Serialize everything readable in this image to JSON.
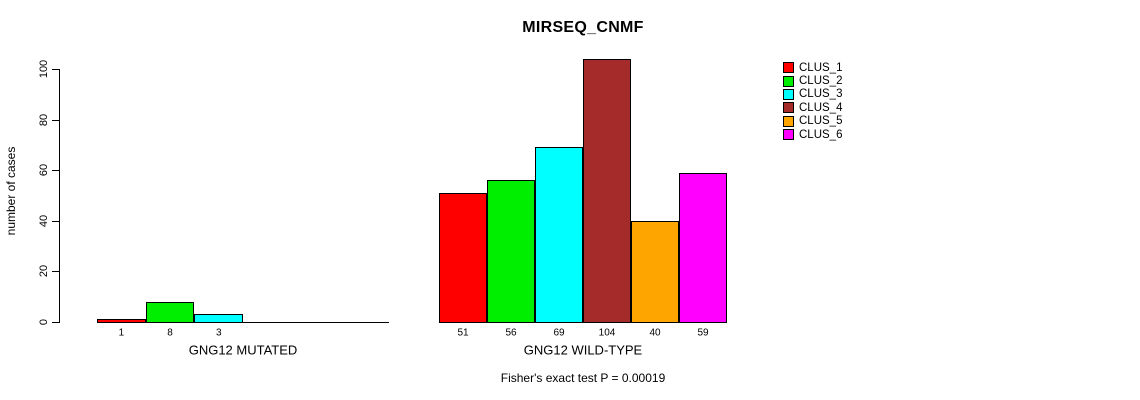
{
  "chart_data": {
    "type": "bar",
    "title": "MIRSEQ_CNMF",
    "ylabel": "number of cases",
    "ylim": [
      0,
      100
    ],
    "yticks": [
      0,
      20,
      40,
      60,
      80,
      100
    ],
    "grid": false,
    "legend_position": "right-outside",
    "legend": [
      {
        "label": "CLUS_1",
        "color": "#FF0000"
      },
      {
        "label": "CLUS_2",
        "color": "#00EE00"
      },
      {
        "label": "CLUS_3",
        "color": "#00FFFF"
      },
      {
        "label": "CLUS_4",
        "color": "#A52A2A"
      },
      {
        "label": "CLUS_5",
        "color": "#FFA500"
      },
      {
        "label": "CLUS_6",
        "color": "#FF00FF"
      }
    ],
    "groups": [
      {
        "label": "GNG12 MUTATED",
        "values": [
          1,
          8,
          3,
          0,
          0,
          0
        ],
        "value_labels": [
          "1",
          "8",
          "3",
          "",
          "",
          ""
        ]
      },
      {
        "label": "GNG12 WILD-TYPE",
        "values": [
          51,
          56,
          69,
          104,
          40,
          59
        ],
        "value_labels": [
          "51",
          "56",
          "69",
          "104",
          "40",
          "59"
        ]
      }
    ],
    "footnote": "Fisher's exact test P = 0.00019"
  }
}
